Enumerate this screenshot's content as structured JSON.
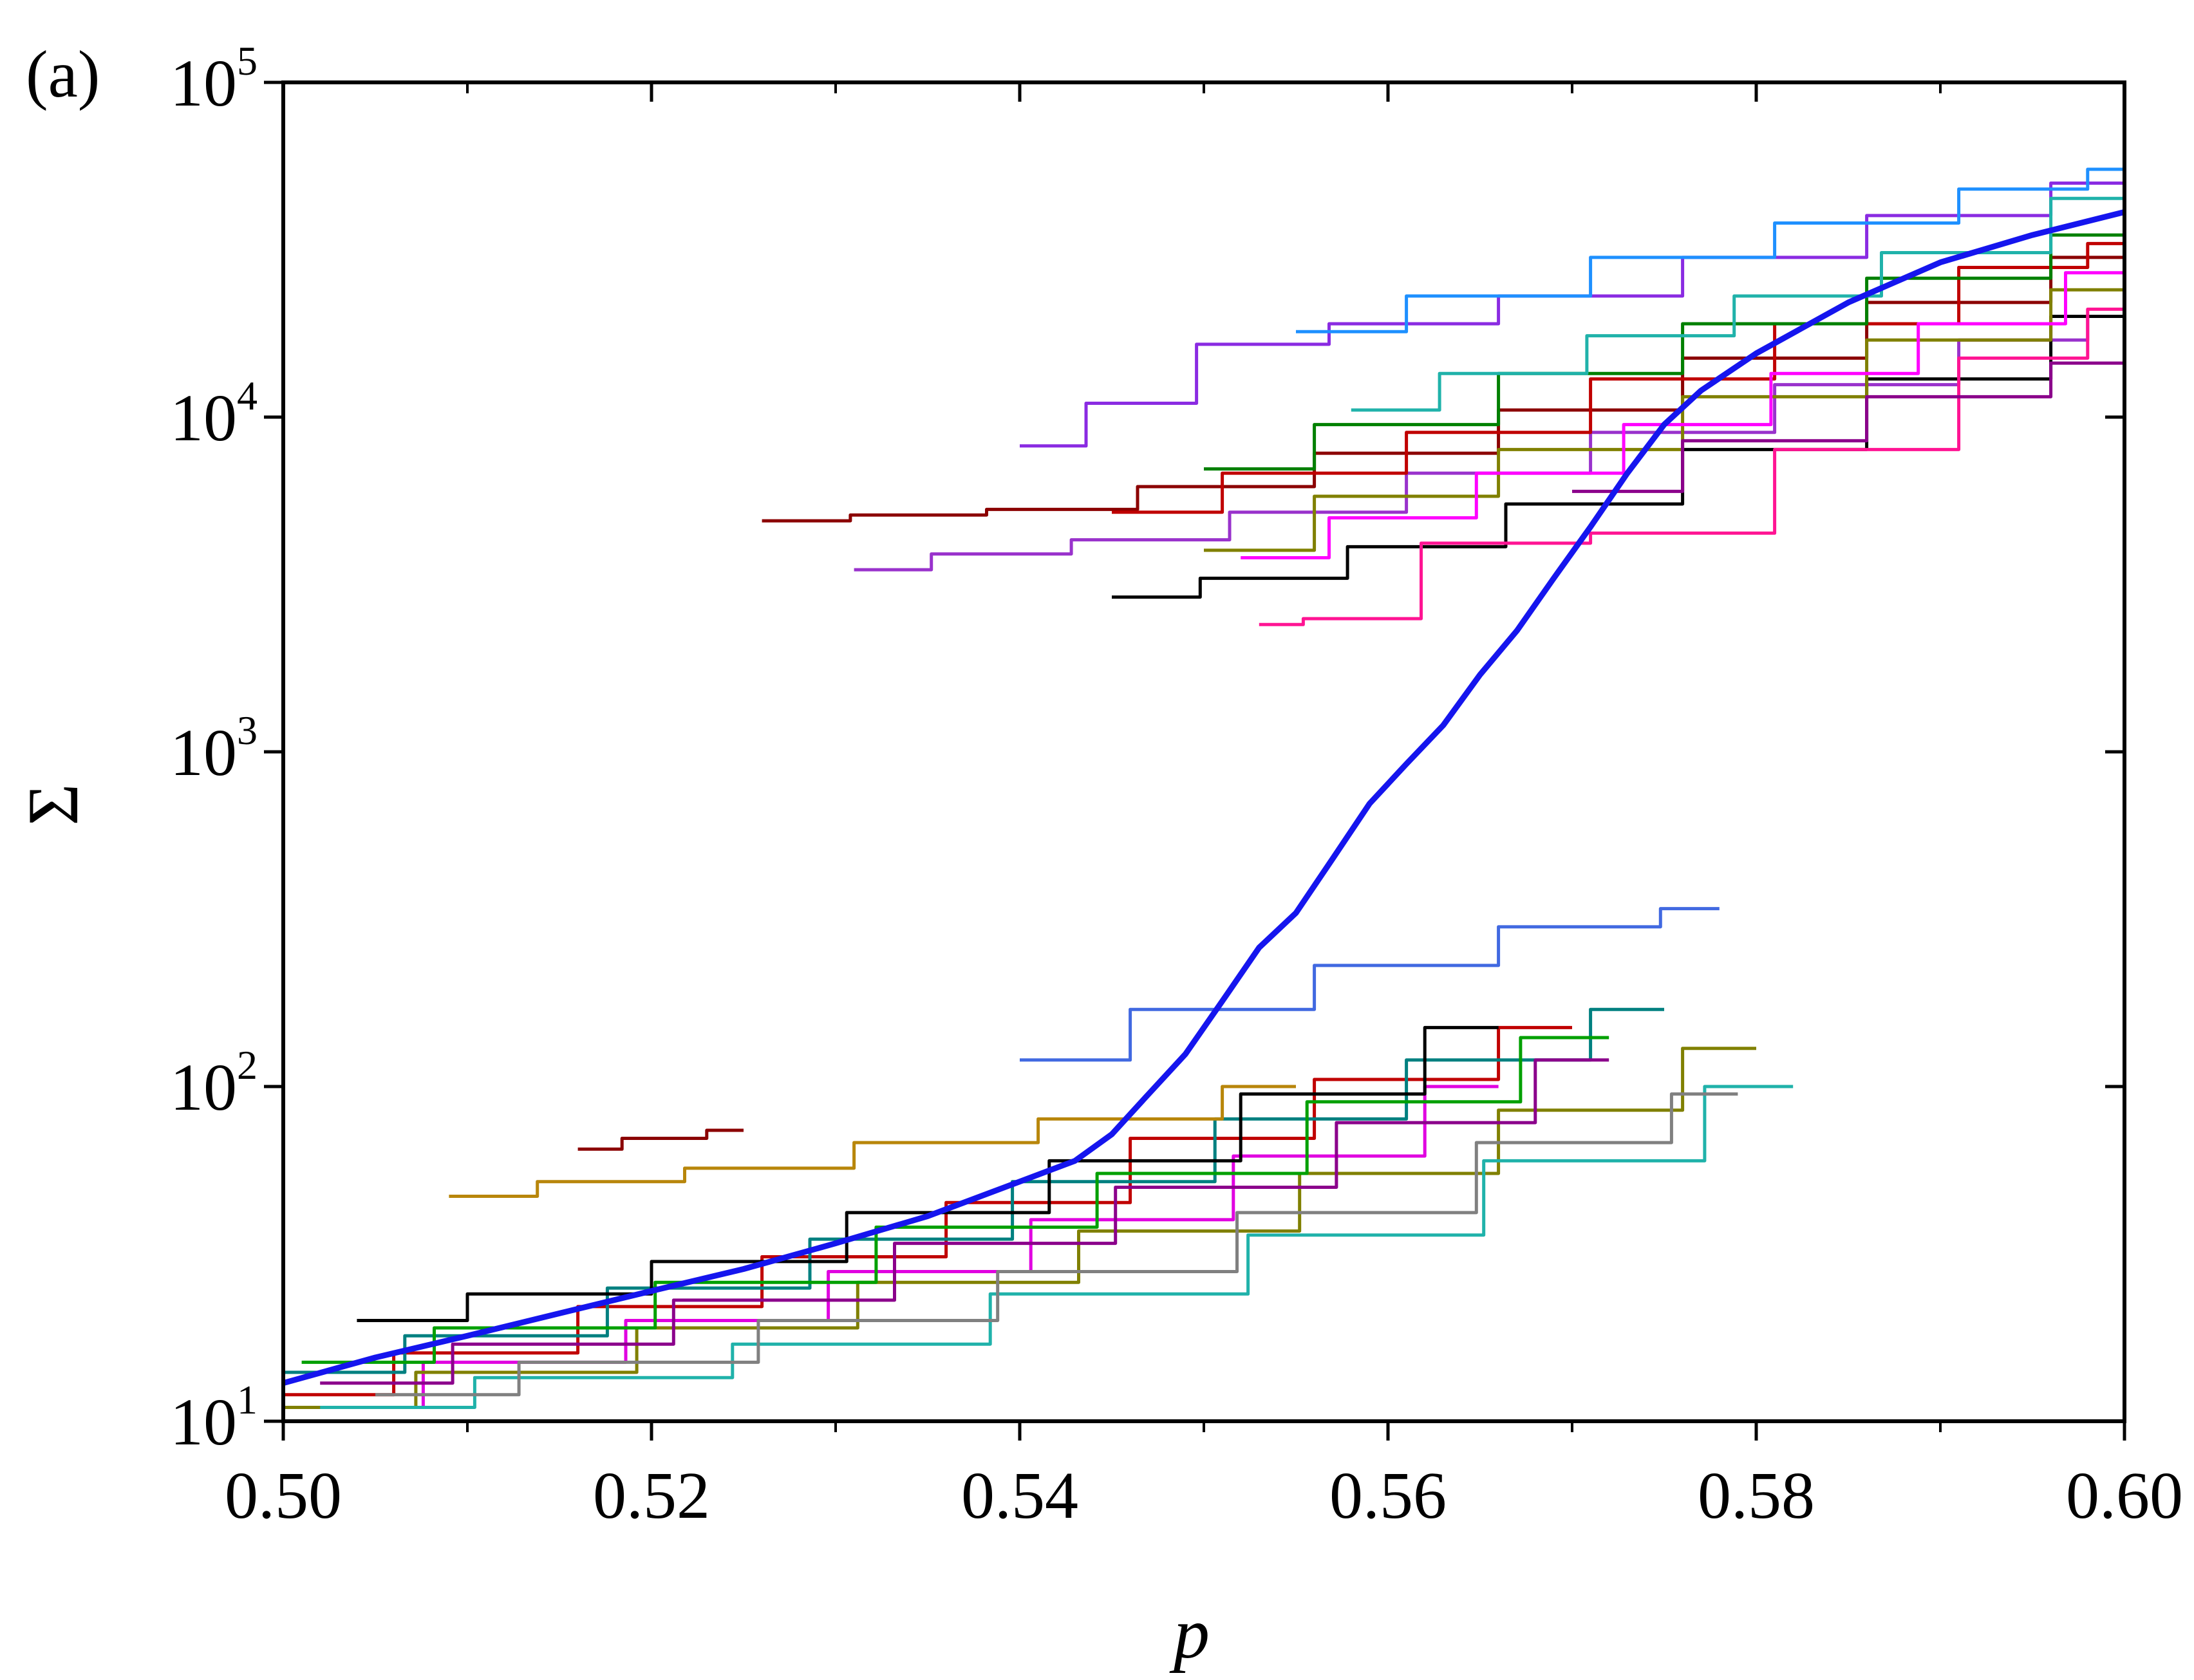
{
  "panel_tag": "(a)",
  "chart_data": {
    "type": "line",
    "xlabel": "p",
    "ylabel": "Σ",
    "xlim": [
      0.5,
      0.6
    ],
    "ylim": [
      10,
      100000
    ],
    "yscale": "log",
    "grid": false,
    "x_ticks": [
      {
        "value": 0.5,
        "label": "0.50"
      },
      {
        "value": 0.52,
        "label": "0.52"
      },
      {
        "value": 0.54,
        "label": "0.54"
      },
      {
        "value": 0.56,
        "label": "0.56"
      },
      {
        "value": 0.58,
        "label": "0.58"
      },
      {
        "value": 0.6,
        "label": "0.60"
      }
    ],
    "y_ticks": [
      {
        "value": 10,
        "base": "10",
        "exp": "1"
      },
      {
        "value": 100,
        "base": "10",
        "exp": "2"
      },
      {
        "value": 1000,
        "base": "10",
        "exp": "3"
      },
      {
        "value": 10000,
        "base": "10",
        "exp": "4"
      },
      {
        "value": 100000,
        "base": "10",
        "exp": "5"
      }
    ],
    "series": [
      {
        "color": "#1515ee",
        "role": "average",
        "x": [
          0.5,
          0.505,
          0.51,
          0.515,
          0.52,
          0.525,
          0.53,
          0.535,
          0.54,
          0.543,
          0.545,
          0.547,
          0.549,
          0.551,
          0.553,
          0.555,
          0.557,
          0.559,
          0.561,
          0.563,
          0.565,
          0.567,
          0.569,
          0.571,
          0.573,
          0.575,
          0.577,
          0.58,
          0.585,
          0.59,
          0.595,
          0.6
        ],
        "y": [
          13,
          15.5,
          18,
          21,
          24.5,
          28.5,
          34,
          41,
          52,
          60,
          72,
          95,
          125,
          180,
          260,
          330,
          480,
          700,
          920,
          1200,
          1700,
          2300,
          3300,
          4700,
          6800,
          9500,
          12000,
          15500,
          22000,
          29000,
          35000,
          41000
        ]
      },
      {
        "color": "#c00000",
        "role": "sample",
        "x": [
          0.5,
          0.51,
          0.52,
          0.53,
          0.54,
          0.55,
          0.56,
          0.57
        ],
        "y": [
          12,
          16,
          22,
          31,
          45,
          70,
          105,
          150
        ]
      },
      {
        "color": "#e000e0",
        "role": "sample",
        "x": [
          0.501,
          0.512,
          0.523,
          0.534,
          0.545,
          0.556,
          0.566
        ],
        "y": [
          11,
          15,
          20,
          28,
          40,
          62,
          100
        ]
      },
      {
        "color": "#008080",
        "role": "sample",
        "x": [
          0.5,
          0.511,
          0.522,
          0.533,
          0.544,
          0.555,
          0.565,
          0.575
        ],
        "y": [
          14,
          18,
          25,
          35,
          52,
          80,
          120,
          170
        ]
      },
      {
        "color": "#808000",
        "role": "sample",
        "x": [
          0.5,
          0.512,
          0.524,
          0.536,
          0.548,
          0.56,
          0.57,
          0.58
        ],
        "y": [
          11,
          14,
          19,
          26,
          37,
          55,
          85,
          130
        ]
      },
      {
        "color": "#00a000",
        "role": "sample",
        "x": [
          0.501,
          0.513,
          0.525,
          0.537,
          0.549,
          0.56,
          0.572
        ],
        "y": [
          15,
          19,
          26,
          38,
          55,
          90,
          140
        ]
      },
      {
        "color": "#000000",
        "role": "sample",
        "x": [
          0.504,
          0.514,
          0.524,
          0.535,
          0.546,
          0.556,
          0.566
        ],
        "y": [
          20,
          24,
          30,
          42,
          60,
          95,
          150
        ]
      },
      {
        "color": "#8b008b",
        "role": "sample",
        "x": [
          0.502,
          0.514,
          0.526,
          0.538,
          0.55,
          0.562,
          0.572
        ],
        "y": [
          13,
          17,
          23,
          34,
          50,
          78,
          120
        ]
      },
      {
        "color": "#20b2aa",
        "role": "sample",
        "x": [
          0.502,
          0.516,
          0.53,
          0.544,
          0.558,
          0.57,
          0.582
        ],
        "y": [
          11,
          13.5,
          17,
          24,
          36,
          60,
          100
        ]
      },
      {
        "color": "#b8860b",
        "role": "sample",
        "x": [
          0.509,
          0.517,
          0.525,
          0.535,
          0.545,
          0.555
        ],
        "y": [
          47,
          52,
          57,
          68,
          80,
          100
        ]
      },
      {
        "color": "#8b0000",
        "role": "sample",
        "x": [
          0.516,
          0.52,
          0.525
        ],
        "y": [
          65,
          70,
          74
        ]
      },
      {
        "color": "#4169e1",
        "role": "sample",
        "x": [
          0.54,
          0.55,
          0.56,
          0.57,
          0.578
        ],
        "y": [
          120,
          170,
          230,
          300,
          340
        ]
      },
      {
        "color": "#808080",
        "role": "sample",
        "x": [
          0.505,
          0.518,
          0.531,
          0.544,
          0.557,
          0.57,
          0.579
        ],
        "y": [
          12,
          15,
          20,
          28,
          42,
          68,
          95
        ]
      },
      {
        "color": "#8b0000",
        "role": "sample",
        "x": [
          0.526,
          0.534,
          0.541,
          0.55,
          0.56,
          0.57,
          0.58,
          0.59,
          0.6
        ],
        "y": [
          4900,
          5100,
          5300,
          6200,
          7800,
          10500,
          15000,
          22000,
          30000
        ]
      },
      {
        "color": "#8a2be2",
        "role": "sample",
        "x": [
          0.54,
          0.546,
          0.552,
          0.56,
          0.57,
          0.58,
          0.59,
          0.6
        ],
        "y": [
          8200,
          11000,
          16500,
          19000,
          23000,
          30000,
          40000,
          50000
        ]
      },
      {
        "color": "#9932cc",
        "role": "sample",
        "x": [
          0.531,
          0.538,
          0.546,
          0.555,
          0.565,
          0.575,
          0.585,
          0.595,
          0.6
        ],
        "y": [
          3500,
          3900,
          4300,
          5200,
          6800,
          9000,
          12500,
          17000,
          20000
        ]
      },
      {
        "color": "#000000",
        "role": "sample",
        "x": [
          0.545,
          0.553,
          0.561,
          0.57,
          0.58,
          0.59,
          0.6
        ],
        "y": [
          2900,
          3300,
          4100,
          5500,
          8000,
          13000,
          20000
        ]
      },
      {
        "color": "#ff1493",
        "role": "sample",
        "x": [
          0.553,
          0.557,
          0.565,
          0.575,
          0.585,
          0.595,
          0.6
        ],
        "y": [
          2400,
          2500,
          4200,
          4500,
          8000,
          15000,
          21000
        ]
      },
      {
        "color": "#c00000",
        "role": "sample",
        "x": [
          0.545,
          0.555,
          0.565,
          0.575,
          0.585,
          0.595,
          0.6
        ],
        "y": [
          5200,
          6800,
          9000,
          13000,
          19000,
          28000,
          33000
        ]
      },
      {
        "color": "#008000",
        "role": "sample",
        "x": [
          0.55,
          0.56,
          0.57,
          0.58,
          0.59,
          0.6
        ],
        "y": [
          7000,
          9500,
          13500,
          19000,
          26000,
          35000
        ]
      },
      {
        "color": "#808000",
        "role": "sample",
        "x": [
          0.55,
          0.56,
          0.57,
          0.58,
          0.59,
          0.6
        ],
        "y": [
          4000,
          5800,
          8000,
          11500,
          17000,
          24000
        ]
      },
      {
        "color": "#20b2aa",
        "role": "sample",
        "x": [
          0.558,
          0.566,
          0.574,
          0.582,
          0.59,
          0.6
        ],
        "y": [
          10500,
          13500,
          17500,
          23000,
          31000,
          45000
        ]
      },
      {
        "color": "#ff00ff",
        "role": "sample",
        "x": [
          0.552,
          0.56,
          0.568,
          0.576,
          0.584,
          0.592,
          0.6
        ],
        "y": [
          3800,
          5000,
          6800,
          9500,
          13500,
          19000,
          27000
        ]
      },
      {
        "color": "#1e90ff",
        "role": "sample",
        "x": [
          0.555,
          0.565,
          0.575,
          0.585,
          0.595,
          0.6
        ],
        "y": [
          18000,
          23000,
          30000,
          38000,
          48000,
          55000
        ]
      },
      {
        "color": "#8b008b",
        "role": "sample",
        "x": [
          0.57,
          0.58,
          0.59,
          0.6
        ],
        "y": [
          6000,
          8500,
          11500,
          14500
        ]
      }
    ]
  }
}
